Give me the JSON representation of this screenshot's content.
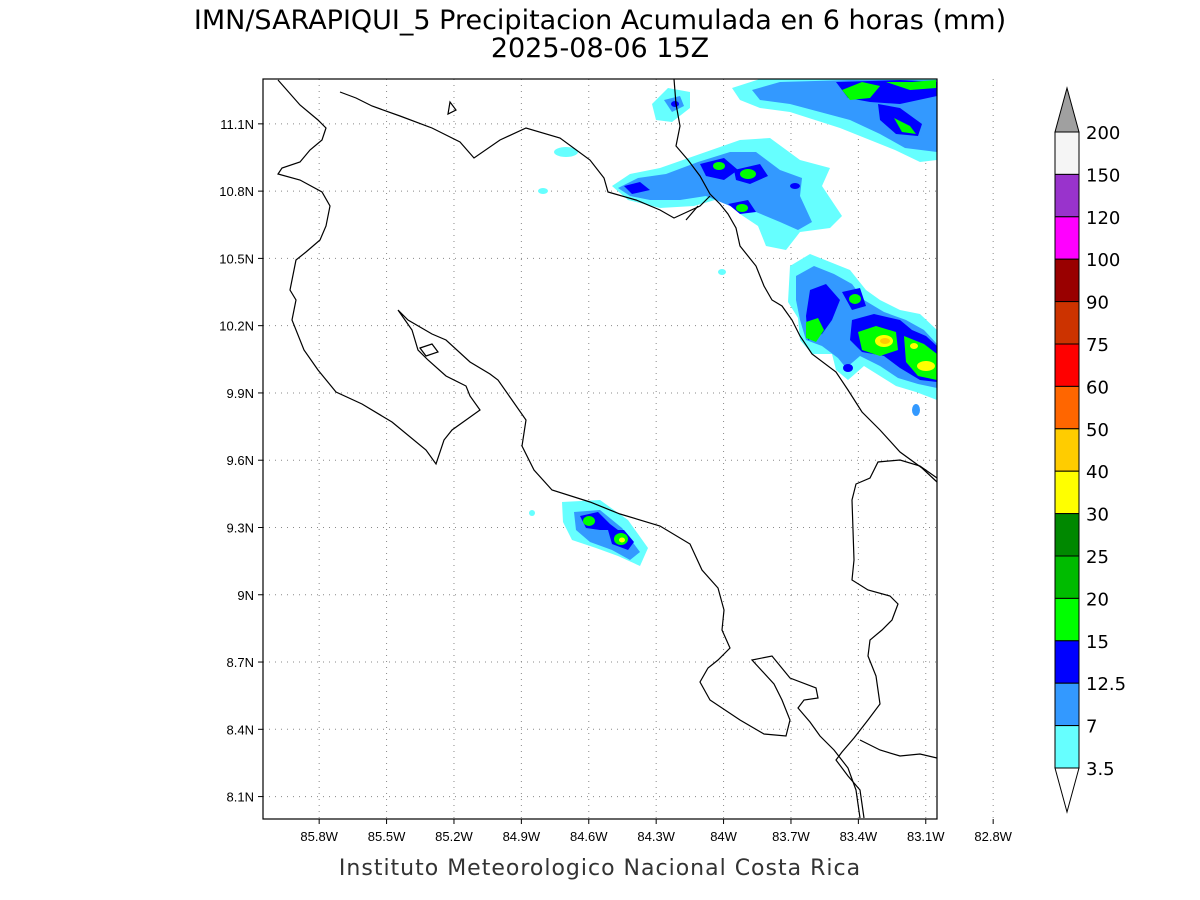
{
  "title_line1": "IMN/SARAPIQUI_5 Precipitacion Acumulada en 6 horas (mm)",
  "title_line2": "2025-08-06 15Z",
  "footer": "Instituto Meteorologico Nacional Costa Rica",
  "map": {
    "lon_range": [
      -86.05,
      -83.05
    ],
    "lat_range": [
      8.0,
      11.3
    ],
    "lon_ticks": [
      "85.8W",
      "85.5W",
      "85.2W",
      "84.9W",
      "84.6W",
      "84.3W",
      "84W",
      "83.7W",
      "83.4W",
      "83.1W",
      "82.8W"
    ],
    "lat_ticks": [
      "11.1N",
      "10.8N",
      "10.5N",
      "10.2N",
      "9.9N",
      "9.6N",
      "9.3N",
      "9N",
      "8.7N",
      "8.4N",
      "8.1N"
    ],
    "grid": true
  },
  "colorbar": {
    "levels": [
      "200",
      "150",
      "120",
      "100",
      "90",
      "75",
      "60",
      "50",
      "40",
      "30",
      "25",
      "20",
      "15",
      "12.5",
      "7",
      "3.5"
    ],
    "colors": [
      "#a0a0a0",
      "#f5f5f5",
      "#9933cc",
      "#ff00ff",
      "#990000",
      "#cc3300",
      "#ff0000",
      "#ff6600",
      "#ffcc00",
      "#ffff00",
      "#008800",
      "#00bb00",
      "#00ff00",
      "#0000ff",
      "#3399ff",
      "#66ffff"
    ]
  }
}
